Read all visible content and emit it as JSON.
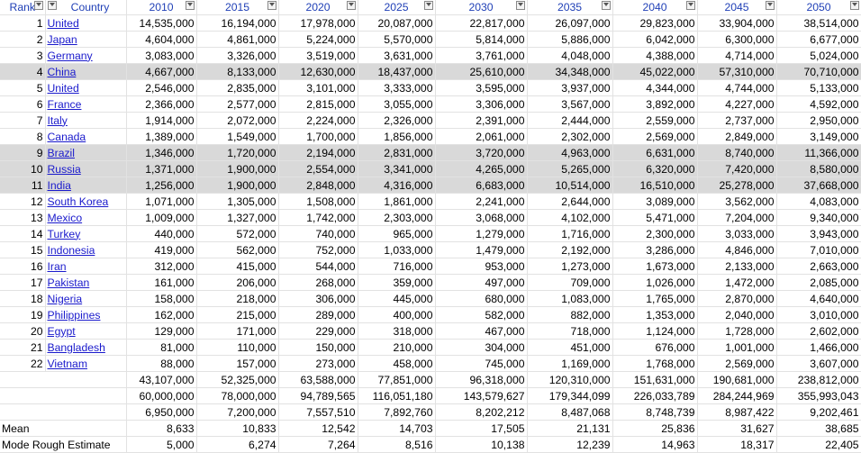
{
  "headers": {
    "rank": "Rank",
    "country": "Country",
    "years": [
      "2010",
      "2015",
      "2020",
      "2025",
      "2030",
      "2035",
      "2040",
      "2045",
      "2050"
    ]
  },
  "rows": [
    {
      "rank": "1",
      "country": "United",
      "values": [
        "14,535,000",
        "16,194,000",
        "17,978,000",
        "20,087,000",
        "22,817,000",
        "26,097,000",
        "29,823,000",
        "33,904,000",
        "38,514,000"
      ]
    },
    {
      "rank": "2",
      "country": "Japan",
      "values": [
        "4,604,000",
        "4,861,000",
        "5,224,000",
        "5,570,000",
        "5,814,000",
        "5,886,000",
        "6,042,000",
        "6,300,000",
        "6,677,000"
      ]
    },
    {
      "rank": "3",
      "country": "Germany",
      "values": [
        "3,083,000",
        "3,326,000",
        "3,519,000",
        "3,631,000",
        "3,761,000",
        "4,048,000",
        "4,388,000",
        "4,714,000",
        "5,024,000"
      ]
    },
    {
      "rank": "4",
      "country": "China",
      "highlight": true,
      "values": [
        "4,667,000",
        "8,133,000",
        "12,630,000",
        "18,437,000",
        "25,610,000",
        "34,348,000",
        "45,022,000",
        "57,310,000",
        "70,710,000"
      ]
    },
    {
      "rank": "5",
      "country": "United",
      "values": [
        "2,546,000",
        "2,835,000",
        "3,101,000",
        "3,333,000",
        "3,595,000",
        "3,937,000",
        "4,344,000",
        "4,744,000",
        "5,133,000"
      ]
    },
    {
      "rank": "6",
      "country": "France",
      "values": [
        "2,366,000",
        "2,577,000",
        "2,815,000",
        "3,055,000",
        "3,306,000",
        "3,567,000",
        "3,892,000",
        "4,227,000",
        "4,592,000"
      ]
    },
    {
      "rank": "7",
      "country": "Italy",
      "values": [
        "1,914,000",
        "2,072,000",
        "2,224,000",
        "2,326,000",
        "2,391,000",
        "2,444,000",
        "2,559,000",
        "2,737,000",
        "2,950,000"
      ]
    },
    {
      "rank": "8",
      "country": "Canada",
      "values": [
        "1,389,000",
        "1,549,000",
        "1,700,000",
        "1,856,000",
        "2,061,000",
        "2,302,000",
        "2,569,000",
        "2,849,000",
        "3,149,000"
      ]
    },
    {
      "rank": "9",
      "country": "Brazil",
      "highlight": true,
      "values": [
        "1,346,000",
        "1,720,000",
        "2,194,000",
        "2,831,000",
        "3,720,000",
        "4,963,000",
        "6,631,000",
        "8,740,000",
        "11,366,000"
      ]
    },
    {
      "rank": "10",
      "country": "Russia",
      "highlight": true,
      "values": [
        "1,371,000",
        "1,900,000",
        "2,554,000",
        "3,341,000",
        "4,265,000",
        "5,265,000",
        "6,320,000",
        "7,420,000",
        "8,580,000"
      ]
    },
    {
      "rank": "11",
      "country": "India",
      "highlight": true,
      "values": [
        "1,256,000",
        "1,900,000",
        "2,848,000",
        "4,316,000",
        "6,683,000",
        "10,514,000",
        "16,510,000",
        "25,278,000",
        "37,668,000"
      ]
    },
    {
      "rank": "12",
      "country": "South Korea",
      "values": [
        "1,071,000",
        "1,305,000",
        "1,508,000",
        "1,861,000",
        "2,241,000",
        "2,644,000",
        "3,089,000",
        "3,562,000",
        "4,083,000"
      ]
    },
    {
      "rank": "13",
      "country": "Mexico",
      "values": [
        "1,009,000",
        "1,327,000",
        "1,742,000",
        "2,303,000",
        "3,068,000",
        "4,102,000",
        "5,471,000",
        "7,204,000",
        "9,340,000"
      ]
    },
    {
      "rank": "14",
      "country": "Turkey",
      "values": [
        "440,000",
        "572,000",
        "740,000",
        "965,000",
        "1,279,000",
        "1,716,000",
        "2,300,000",
        "3,033,000",
        "3,943,000"
      ]
    },
    {
      "rank": "15",
      "country": "Indonesia",
      "values": [
        "419,000",
        "562,000",
        "752,000",
        "1,033,000",
        "1,479,000",
        "2,192,000",
        "3,286,000",
        "4,846,000",
        "7,010,000"
      ]
    },
    {
      "rank": "16",
      "country": "Iran",
      "values": [
        "312,000",
        "415,000",
        "544,000",
        "716,000",
        "953,000",
        "1,273,000",
        "1,673,000",
        "2,133,000",
        "2,663,000"
      ]
    },
    {
      "rank": "17",
      "country": "Pakistan",
      "values": [
        "161,000",
        "206,000",
        "268,000",
        "359,000",
        "497,000",
        "709,000",
        "1,026,000",
        "1,472,000",
        "2,085,000"
      ]
    },
    {
      "rank": "18",
      "country": "Nigeria",
      "values": [
        "158,000",
        "218,000",
        "306,000",
        "445,000",
        "680,000",
        "1,083,000",
        "1,765,000",
        "2,870,000",
        "4,640,000"
      ]
    },
    {
      "rank": "19",
      "country": "Philippines",
      "values": [
        "162,000",
        "215,000",
        "289,000",
        "400,000",
        "582,000",
        "882,000",
        "1,353,000",
        "2,040,000",
        "3,010,000"
      ]
    },
    {
      "rank": "20",
      "country": "Egypt",
      "values": [
        "129,000",
        "171,000",
        "229,000",
        "318,000",
        "467,000",
        "718,000",
        "1,124,000",
        "1,728,000",
        "2,602,000"
      ]
    },
    {
      "rank": "21",
      "country": "Bangladesh",
      "values": [
        "81,000",
        "110,000",
        "150,000",
        "210,000",
        "304,000",
        "451,000",
        "676,000",
        "1,001,000",
        "1,466,000"
      ]
    },
    {
      "rank": "22",
      "country": "Vietnam",
      "values": [
        "88,000",
        "157,000",
        "273,000",
        "458,000",
        "745,000",
        "1,169,000",
        "1,768,000",
        "2,569,000",
        "3,607,000"
      ]
    }
  ],
  "summary": [
    {
      "label": "",
      "values": [
        "43,107,000",
        "52,325,000",
        "63,588,000",
        "77,851,000",
        "96,318,000",
        "120,310,000",
        "151,631,000",
        "190,681,000",
        "238,812,000"
      ]
    },
    {
      "label": "",
      "values": [
        "60,000,000",
        "78,000,000",
        "94,789,565",
        "116,051,180",
        "143,579,627",
        "179,344,099",
        "226,033,789",
        "284,244,969",
        "355,993,043"
      ]
    },
    {
      "label": "",
      "values": [
        "6,950,000",
        "7,200,000",
        "7,557,510",
        "7,892,760",
        "8,202,212",
        "8,487,068",
        "8,748,739",
        "8,987,422",
        "9,202,461"
      ]
    },
    {
      "label": "Mean",
      "values": [
        "8,633",
        "10,833",
        "12,542",
        "14,703",
        "17,505",
        "21,131",
        "25,836",
        "31,627",
        "38,685"
      ]
    },
    {
      "label": "Mode Rough Estimate",
      "values": [
        "5,000",
        "6,274",
        "7,264",
        "8,516",
        "10,138",
        "12,239",
        "14,963",
        "18,317",
        "22,405"
      ]
    }
  ]
}
